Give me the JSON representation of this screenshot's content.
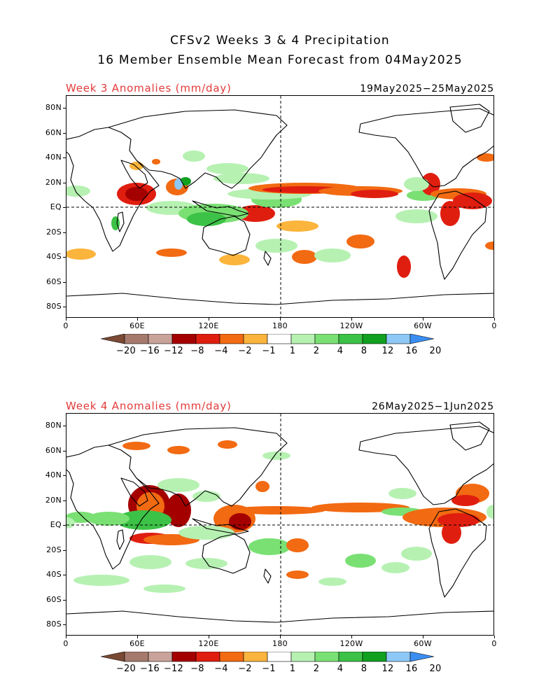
{
  "title": {
    "line1": "CFSv2 Weeks 3 & 4 Precipitation",
    "line2": "16 Member Ensemble Mean Forecast from 04May2025"
  },
  "colors": {
    "label_red": "#e23a3a",
    "colorbar": [
      "#7a4a34",
      "#a57a6c",
      "#c9a39a",
      "#a50000",
      "#e01e10",
      "#f26a12",
      "#fbb43c",
      "#ffffff",
      "#b6f1b2",
      "#7ae073",
      "#3cc246",
      "#12a020",
      "#8ec8f6",
      "#3a8ef2"
    ]
  },
  "colorbar_labels": [
    "−20",
    "−16",
    "−12",
    "−8",
    "−4",
    "−2",
    "−1",
    "1",
    "2",
    "4",
    "8",
    "12",
    "16",
    "20"
  ],
  "lat_labels": [
    "80N",
    "60N",
    "40N",
    "20N",
    "EQ",
    "20S",
    "40S",
    "60S",
    "80S"
  ],
  "lon_labels": [
    "0",
    "60E",
    "120E",
    "180",
    "120W",
    "60W",
    "0"
  ],
  "panels": [
    {
      "id": "week3",
      "label": "Week 3 Anomalies (mm/day)",
      "dates": "19May2025−25May2025"
    },
    {
      "id": "week4",
      "label": "Week 4 Anomalies (mm/day)",
      "dates": "26May2025−1Jun2025"
    }
  ]
}
